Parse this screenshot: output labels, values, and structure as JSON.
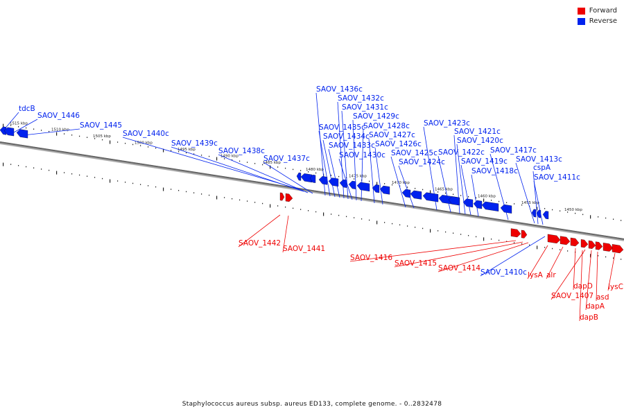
{
  "legend": {
    "items": [
      {
        "label": "Forward",
        "color": "#ee0000"
      },
      {
        "label": "Reverse",
        "color": "#0022ee"
      }
    ]
  },
  "caption": "Staphylococcus aureus subsp. aureus ED133, complete genome. - 0..2832478",
  "scale": {
    "ticks": [
      "1515 kbp",
      "1510 kbp",
      "1505 kbp",
      "1500 kbp",
      "1495 kbp",
      "1490 kbp",
      "1485 kbp",
      "1480 kbp",
      "1475 kbp",
      "1470 kbp",
      "1465 kbp",
      "1460 kbp",
      "1455 kbp",
      "1450 kbp"
    ]
  },
  "colors": {
    "forward": "#ee0000",
    "reverse": "#0022ee",
    "axis": "#777777"
  },
  "reverse_genes": [
    "tdcB",
    "SAOV_1446",
    "SAOV_1445",
    "SAOV_1440c",
    "SAOV_1439c",
    "SAOV_1438c",
    "SAOV_1437c",
    "SAOV_1436c",
    "SAOV_1435c",
    "SAOV_1434c",
    "SAOV_1433c",
    "SAOV_1432c",
    "SAOV_1431c",
    "SAOV_1430c",
    "SAOV_1429c",
    "SAOV_1428c",
    "SAOV_1427c",
    "SAOV_1426c",
    "SAOV_1425c",
    "SAOV_1424c",
    "SAOV_1423c",
    "SAOV_1422c",
    "SAOV_1421c",
    "SAOV_1420c",
    "SAOV_1419c",
    "SAOV_1418c",
    "SAOV_1417c",
    "SAOV_1413c",
    "cspA",
    "SAOV_1411c",
    "SAOV_1410c"
  ],
  "forward_genes": [
    "SAOV_1442",
    "SAOV_1441",
    "SAOV_1416",
    "SAOV_1415",
    "SAOV_1414",
    "lysA",
    "alr",
    "dapD",
    "SAOV_1407",
    "dapA",
    "asd",
    "dapB",
    "lysC"
  ]
}
